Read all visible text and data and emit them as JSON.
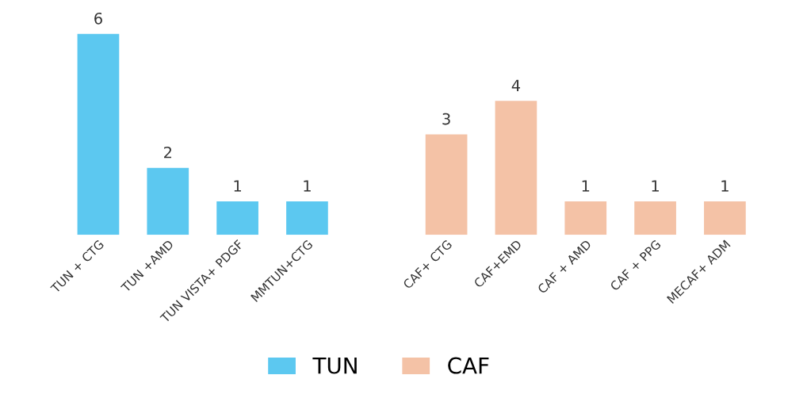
{
  "chart_data": {
    "type": "bar",
    "categories": [
      "TUN + CTG",
      "TUN +AMD",
      "TUN VISTA+ PDGF",
      "MMTUN+CTG",
      null,
      "CAF+ CTG",
      "CAF+EMD",
      "CAF + AMD",
      "CAF + PPG",
      "MECAF+ ADM"
    ],
    "series": [
      {
        "name": "TUN",
        "color": "#5cc8f0",
        "values": [
          6,
          2,
          1,
          1,
          null,
          null,
          null,
          null,
          null,
          null
        ]
      },
      {
        "name": "CAF",
        "color": "#f4c2a6",
        "values": [
          null,
          null,
          null,
          null,
          null,
          3,
          4,
          1,
          1,
          1
        ]
      }
    ],
    "data_labels": true,
    "legend": "bottom",
    "grid": false
  }
}
